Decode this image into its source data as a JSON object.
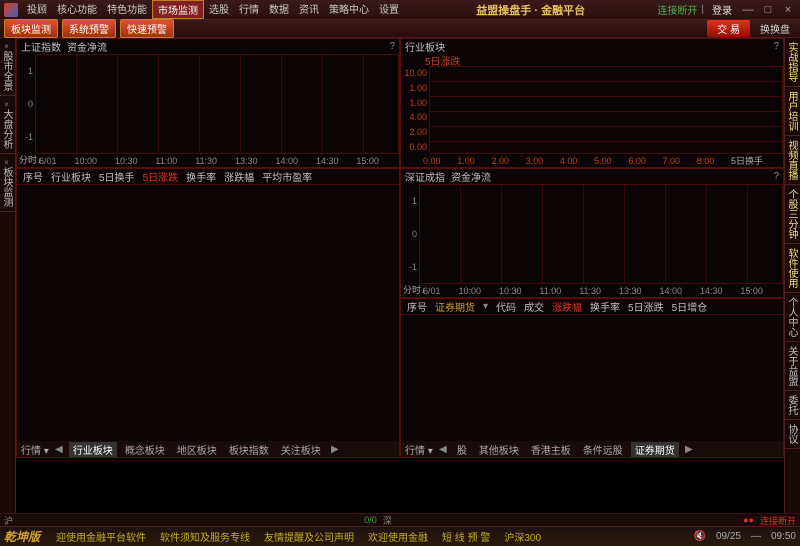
{
  "title": "益盟操盘手 · 金融平台",
  "menu": [
    "投顾",
    "核心功能",
    "特色功能",
    "市场监测",
    "选股",
    "行情",
    "数据",
    "资讯",
    "策略中心",
    "设置"
  ],
  "menu_active_idx": 3,
  "conn": "连接断开",
  "login": "登录",
  "subtabs": [
    "板块监测",
    "系统预警",
    "快速预警"
  ],
  "trade": "交 易",
  "swap": "换换盘",
  "left_tabs": [
    "股市全景",
    "大盘分析",
    "板块监测"
  ],
  "right_tabs": [
    "实战指导",
    "用户培训",
    "视频直播",
    "个股三分钟",
    "软件使用",
    "个人中心",
    "关于益盟",
    "委托",
    "协议"
  ],
  "chart1": {
    "title": "上证指数",
    "sub": "资金净流",
    "y": [
      "1",
      "0",
      "-1"
    ],
    "x": [
      "6/01",
      "10:00",
      "10:30",
      "11:00",
      "11:30",
      "13:30",
      "14:00",
      "14:30",
      "15:00"
    ],
    "fen": "分时↓"
  },
  "chart2": {
    "title": "行业板块",
    "sub": "5日涨跌",
    "y": [
      "10.00",
      "1.00",
      "1.00",
      "4.00",
      "2.00",
      "0.00"
    ],
    "x": [
      "0.00",
      "1.00",
      "2.00",
      "3.00",
      "4.00",
      "5.00",
      "6.00",
      "7.00",
      "8.00"
    ],
    "right": "5日换手"
  },
  "chart3": {
    "title": "深证成指",
    "sub": "资金净流",
    "y": [
      "1",
      "0",
      "-1"
    ],
    "x": [
      "6/01",
      "10:00",
      "10:30",
      "11:00",
      "11:30",
      "13:30",
      "14:00",
      "14:30",
      "15:00"
    ],
    "fen": "分时↓"
  },
  "table1": {
    "cols": [
      "序号",
      "行业板块",
      "5日换手",
      "5日涨跌",
      "换手率",
      "涨跌幅",
      "平均市盈率"
    ],
    "red_idx": 3
  },
  "table2": {
    "cols": [
      "序号",
      "证券期货",
      "代码",
      "成交",
      "涨跌幅",
      "换手率",
      "5日涨跌",
      "5日增仓"
    ],
    "red_idx": 4,
    "em_idx": 1
  },
  "footer1": {
    "label": "行情",
    "tabs": [
      "股",
      "其他板块",
      "香港主板",
      "条件远股",
      "证券期货"
    ],
    "active": 4
  },
  "footer2": {
    "label": "行情",
    "tabs": [
      "行业板块",
      "概念板块",
      "地区板块",
      "板块指数",
      "关注板块"
    ],
    "active": 0
  },
  "panel5_footer": "分时↓",
  "midbar": {
    "hu": "沪",
    "shen": "深",
    "zero": "0/0"
  },
  "status": {
    "brand": "乾坤版",
    "items": [
      "迎使用金融平台软件",
      "软件须知及服务专线",
      "友情提醒及公司声明",
      "欢迎使用金融",
      "短 线 预 警",
      "沪深300"
    ],
    "disc": "连接断开",
    "date": "09/25",
    "time": "09:50"
  }
}
